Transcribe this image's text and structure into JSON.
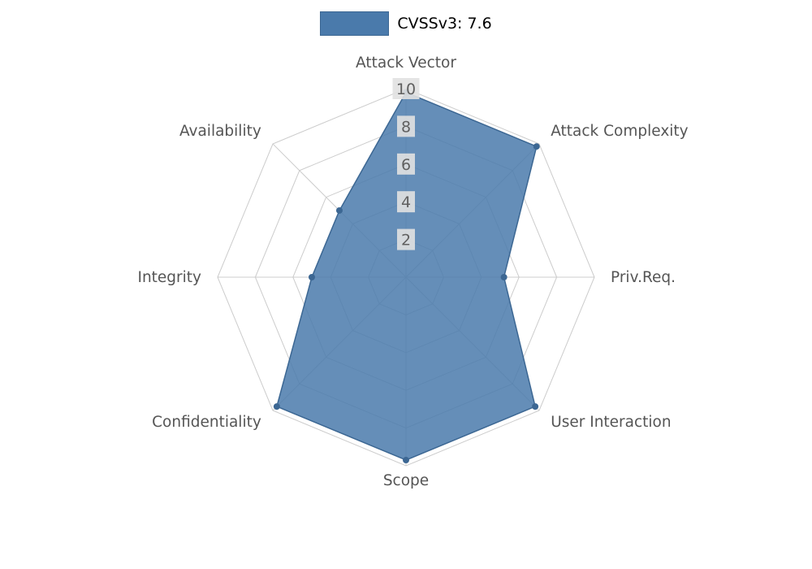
{
  "page": {
    "background": "#ffffff"
  },
  "legend": {
    "label": "CVSSv3: 7.6"
  },
  "chart_data": {
    "type": "radar",
    "title": "CVSSv3: 7.6",
    "legend_position": "top",
    "categories": [
      "Attack Vector",
      "Attack Complexity",
      "Priv.Req.",
      "User Interaction",
      "Scope",
      "Confidentiality",
      "Integrity",
      "Availability"
    ],
    "series": [
      {
        "name": "CVSSv3: 7.6",
        "values": [
          9.8,
          9.8,
          5.2,
          9.7,
          9.7,
          9.7,
          5.0,
          5.0
        ]
      }
    ],
    "axis": {
      "min": 0,
      "max": 10,
      "tick_interval": 2,
      "ticks": [
        2,
        4,
        6,
        8,
        10
      ]
    },
    "grid": {
      "shape": "polygon",
      "rings": 5,
      "spokes": 8
    },
    "colors": {
      "series_fill": "#4a7aab",
      "series_stroke": "#3c6793",
      "marker": "#3c6793",
      "grid_line": "#cccccc",
      "tick_box_bg": "#e1e1e1",
      "tick_text": "#606060",
      "category_label": "#555555",
      "legend_swatch": "#4a7aab",
      "legend_swatch_border": "#3c6793"
    }
  }
}
